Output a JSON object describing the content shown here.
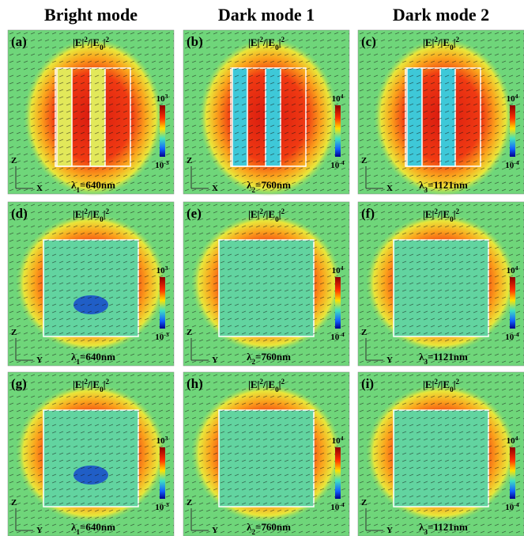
{
  "columns": [
    "Bright mode",
    "Dark mode 1",
    "Dark mode 2"
  ],
  "field_label": [
    "|E|",
    "2",
    "/|E",
    "0",
    "|",
    "2"
  ],
  "panels": [
    {
      "label": "(a)",
      "axes": [
        "Z",
        "X"
      ],
      "wavelength": [
        "λ",
        "1",
        "=640nm"
      ],
      "cbar_max": [
        "10",
        "3"
      ],
      "cbar_min": [
        "10",
        "-3"
      ]
    },
    {
      "label": "(b)",
      "axes": [
        "Z",
        "X"
      ],
      "wavelength": [
        "λ",
        "2",
        "=760nm"
      ],
      "cbar_max": [
        "10",
        "4"
      ],
      "cbar_min": [
        "10",
        "-4"
      ]
    },
    {
      "label": "(c)",
      "axes": [
        "Z",
        "X"
      ],
      "wavelength": [
        "λ",
        "3",
        "=1121nm"
      ],
      "cbar_max": [
        "10",
        "4"
      ],
      "cbar_min": [
        "10",
        "-4"
      ]
    },
    {
      "label": "(d)",
      "axes": [
        "Z",
        "Y"
      ],
      "wavelength": [
        "λ",
        "1",
        "=640nm"
      ],
      "cbar_max": [
        "10",
        "3"
      ],
      "cbar_min": [
        "10",
        "-3"
      ]
    },
    {
      "label": "(e)",
      "axes": [
        "Z",
        "Y"
      ],
      "wavelength": [
        "λ",
        "2",
        "=760nm"
      ],
      "cbar_max": [
        "10",
        "4"
      ],
      "cbar_min": [
        "10",
        "-4"
      ]
    },
    {
      "label": "(f)",
      "axes": [
        "Z",
        "Y"
      ],
      "wavelength": [
        "λ",
        "3",
        "=1121nm"
      ],
      "cbar_max": [
        "10",
        "4"
      ],
      "cbar_min": [
        "10",
        "-4"
      ]
    },
    {
      "label": "(g)",
      "axes": [
        "Z",
        "Y"
      ],
      "wavelength": [
        "λ",
        "1",
        "=640nm"
      ],
      "cbar_max": [
        "10",
        "3"
      ],
      "cbar_min": [
        "10",
        "-3"
      ]
    },
    {
      "label": "(h)",
      "axes": [
        "Z",
        "Y"
      ],
      "wavelength": [
        "λ",
        "2",
        "=760nm"
      ],
      "cbar_max": [
        "10",
        "4"
      ],
      "cbar_min": [
        "10",
        "-4"
      ]
    },
    {
      "label": "(i)",
      "axes": [
        "Z",
        "Y"
      ],
      "wavelength": [
        "λ",
        "3",
        "=1121nm"
      ],
      "cbar_max": [
        "10",
        "4"
      ],
      "cbar_min": [
        "10",
        "-4"
      ]
    }
  ]
}
